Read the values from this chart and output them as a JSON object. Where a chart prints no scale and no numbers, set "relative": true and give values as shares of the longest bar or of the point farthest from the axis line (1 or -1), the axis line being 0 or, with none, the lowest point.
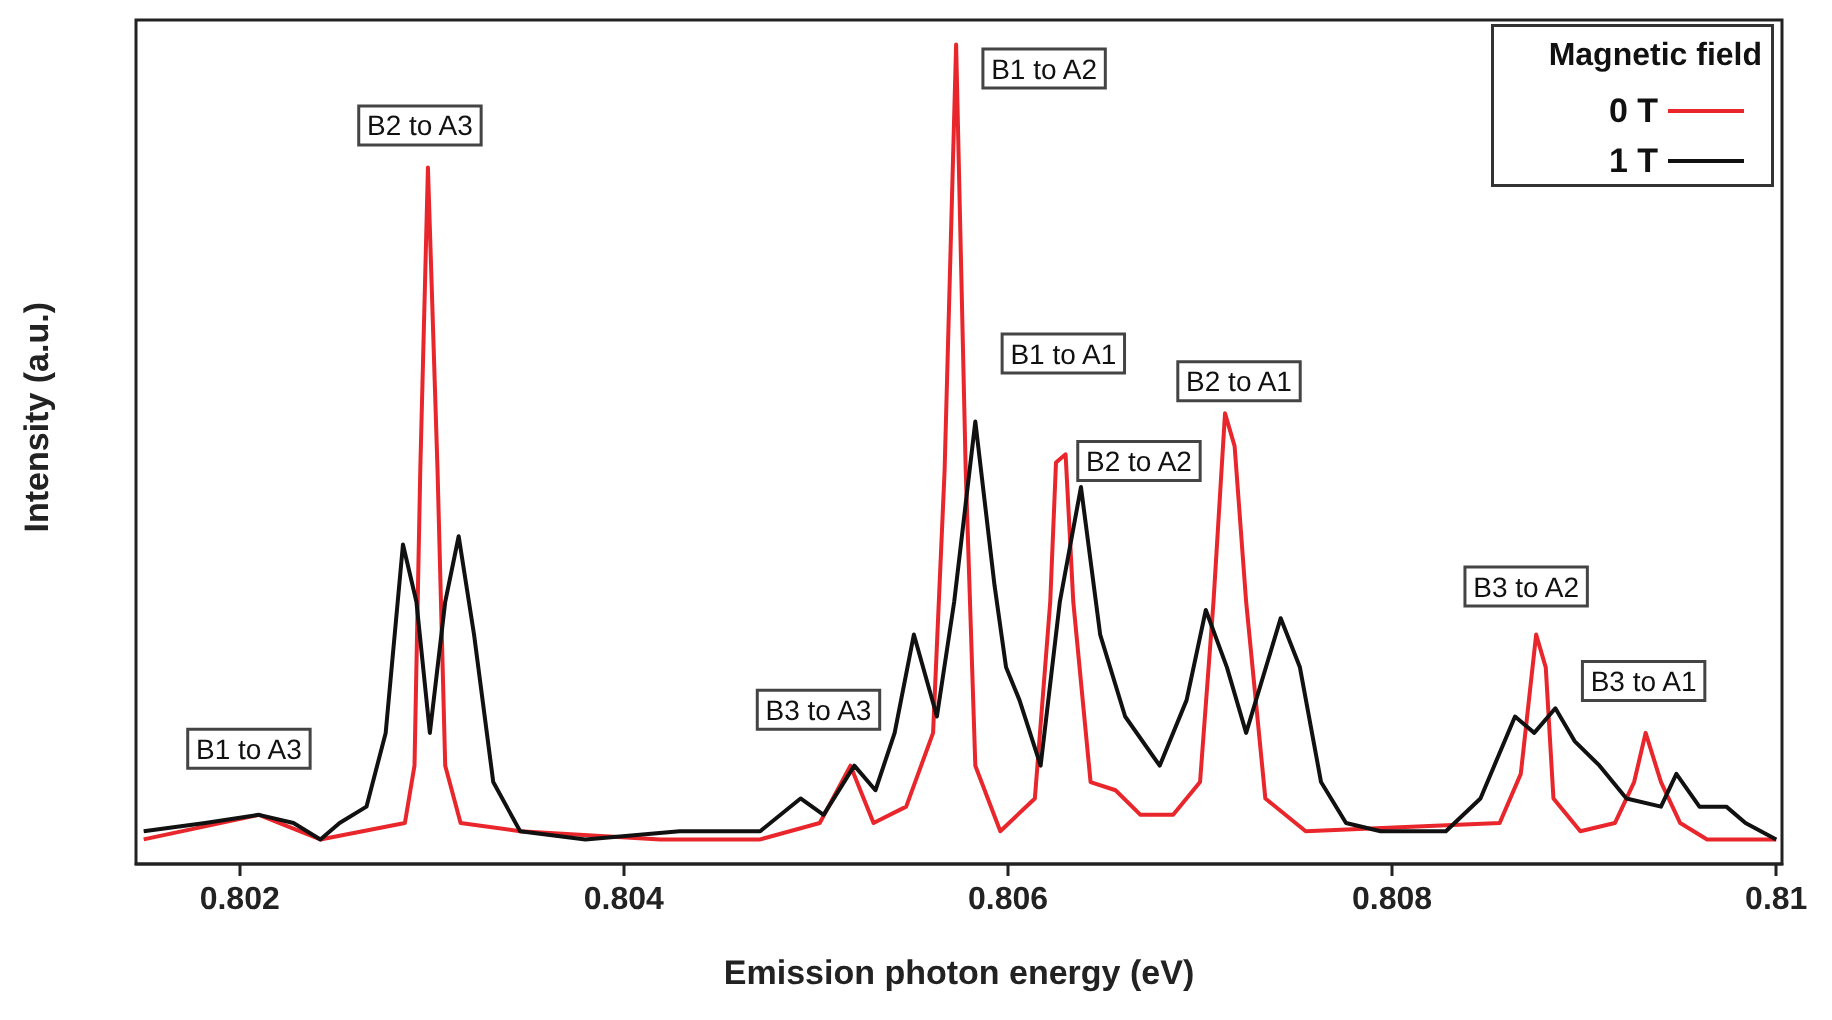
{
  "chart_data": {
    "type": "line",
    "relative": true,
    "xlabel": "Emission photon energy (eV)",
    "ylabel": "Intensity (a.u.)",
    "legend_title": "Magnetic field",
    "legend": "top right",
    "grid": false,
    "marker": "none",
    "line_style": "solid",
    "xlim": [
      0.80146,
      0.81003
    ],
    "xticks": [
      0.802,
      0.804,
      0.806,
      0.808,
      0.81
    ],
    "series": [
      {
        "name": "0 T",
        "color": "#e8262b",
        "x": [
          0.8015,
          0.8021,
          0.80242,
          0.80286,
          0.80291,
          0.80294,
          0.80298,
          0.80303,
          0.80307,
          0.80315,
          0.80346,
          0.80419,
          0.80471,
          0.80502,
          0.80518,
          0.8053,
          0.80547,
          0.80561,
          0.80567,
          0.80573,
          0.80578,
          0.80583,
          0.80596,
          0.80614,
          0.80622,
          0.80625,
          0.8063,
          0.80634,
          0.80643,
          0.80656,
          0.80669,
          0.80686,
          0.807,
          0.80707,
          0.80713,
          0.80718,
          0.80724,
          0.80734,
          0.80755,
          0.80856,
          0.80867,
          0.80875,
          0.8088,
          0.80884,
          0.80898,
          0.80916,
          0.80926,
          0.80932,
          0.8094,
          0.8095,
          0.80964,
          0.81
        ],
        "values": [
          0.03,
          0.06,
          0.03,
          0.05,
          0.12,
          0.48,
          0.85,
          0.48,
          0.12,
          0.05,
          0.04,
          0.03,
          0.03,
          0.05,
          0.12,
          0.05,
          0.07,
          0.16,
          0.48,
          1.0,
          0.48,
          0.12,
          0.04,
          0.08,
          0.32,
          0.49,
          0.5,
          0.32,
          0.1,
          0.09,
          0.06,
          0.06,
          0.1,
          0.32,
          0.55,
          0.51,
          0.32,
          0.08,
          0.04,
          0.05,
          0.11,
          0.28,
          0.24,
          0.08,
          0.04,
          0.05,
          0.1,
          0.16,
          0.1,
          0.05,
          0.03,
          0.03
        ]
      },
      {
        "name": "1 T",
        "color": "#111111",
        "x": [
          0.8015,
          0.80182,
          0.8021,
          0.80228,
          0.80242,
          0.80252,
          0.80266,
          0.80276,
          0.80285,
          0.80292,
          0.80299,
          0.80307,
          0.80314,
          0.80322,
          0.80332,
          0.80346,
          0.8038,
          0.80429,
          0.80471,
          0.80492,
          0.80504,
          0.8052,
          0.80531,
          0.80541,
          0.80551,
          0.80563,
          0.80572,
          0.80583,
          0.80593,
          0.80599,
          0.80606,
          0.80617,
          0.80627,
          0.80638,
          0.80648,
          0.80661,
          0.80679,
          0.80693,
          0.80703,
          0.80714,
          0.80724,
          0.80742,
          0.80752,
          0.80763,
          0.80776,
          0.80794,
          0.80828,
          0.80846,
          0.80864,
          0.80874,
          0.80885,
          0.80895,
          0.80908,
          0.80922,
          0.8094,
          0.80948,
          0.8096,
          0.80974,
          0.80984,
          0.81
        ],
        "values": [
          0.04,
          0.05,
          0.06,
          0.05,
          0.03,
          0.05,
          0.07,
          0.16,
          0.39,
          0.32,
          0.16,
          0.32,
          0.4,
          0.28,
          0.1,
          0.04,
          0.03,
          0.04,
          0.04,
          0.08,
          0.06,
          0.12,
          0.09,
          0.16,
          0.28,
          0.18,
          0.32,
          0.54,
          0.34,
          0.24,
          0.2,
          0.12,
          0.32,
          0.46,
          0.28,
          0.18,
          0.12,
          0.2,
          0.31,
          0.24,
          0.16,
          0.3,
          0.24,
          0.1,
          0.05,
          0.04,
          0.04,
          0.08,
          0.18,
          0.16,
          0.19,
          0.15,
          0.12,
          0.08,
          0.07,
          0.11,
          0.07,
          0.07,
          0.05,
          0.03
        ]
      }
    ],
    "annotations": [
      {
        "text": "B1 to A3",
        "x": 0.8021,
        "y": 0.06
      },
      {
        "text": "B2 to A3",
        "x": 0.80298,
        "y": 0.85
      },
      {
        "text": "B1 to A2",
        "x": 0.80573,
        "y": 1.0
      },
      {
        "text": "B1 to A1",
        "x": 0.80583,
        "y": 0.54
      },
      {
        "text": "B2 to A2",
        "x": 0.80638,
        "y": 0.46
      },
      {
        "text": "B2 to A1",
        "x": 0.80713,
        "y": 0.55
      },
      {
        "text": "B3 to A3",
        "x": 0.80518,
        "y": 0.12
      },
      {
        "text": "B3 to A2",
        "x": 0.80875,
        "y": 0.28
      },
      {
        "text": "B3 to A1",
        "x": 0.80932,
        "y": 0.16
      }
    ]
  }
}
